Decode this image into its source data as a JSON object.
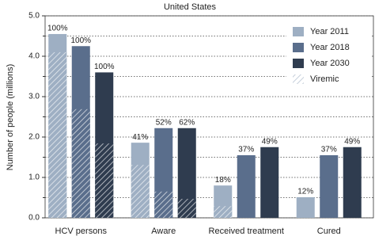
{
  "chart_data": {
    "type": "bar",
    "title": "United States",
    "y_label": "Number of people (millions)",
    "categories": [
      "HCV persons",
      "Aware",
      "Received treatment",
      "Cured"
    ],
    "series": [
      {
        "name": "Year 2011",
        "color": "#9eafc3",
        "values": [
          4.55,
          1.86,
          0.8,
          0.51
        ],
        "viremic": [
          4.1,
          1.31,
          0.29,
          null
        ],
        "percent_labels": [
          "100%",
          "41%",
          "18%",
          "12%"
        ]
      },
      {
        "name": "Year 2018",
        "color": "#5a6e8c",
        "values": [
          4.25,
          2.22,
          1.55,
          1.55
        ],
        "viremic": [
          2.69,
          0.65,
          null,
          null
        ],
        "percent_labels": [
          "100%",
          "52%",
          "37%",
          "37%"
        ]
      },
      {
        "name": "Year 2030",
        "color": "#2f3c4f",
        "values": [
          3.6,
          2.22,
          1.75,
          1.75
        ],
        "viremic": [
          1.84,
          0.47,
          null,
          null
        ],
        "percent_labels": [
          "100%",
          "62%",
          "49%",
          "49%"
        ]
      }
    ],
    "hatch_legend": "Viremic",
    "ylim": [
      0,
      5
    ],
    "yticks": [
      {
        "value": 0,
        "label": "0.0"
      },
      {
        "value": 1,
        "label": "1.0"
      },
      {
        "value": 2,
        "label": "2.0"
      },
      {
        "value": 3,
        "label": "3.0"
      },
      {
        "value": 4,
        "label": "4.0"
      },
      {
        "value": 5,
        "label": "5.0"
      }
    ],
    "minor_yticks": [
      0.5,
      1.5,
      2.5,
      3.5,
      4.5
    ],
    "grid": true,
    "legend": "top-right"
  }
}
